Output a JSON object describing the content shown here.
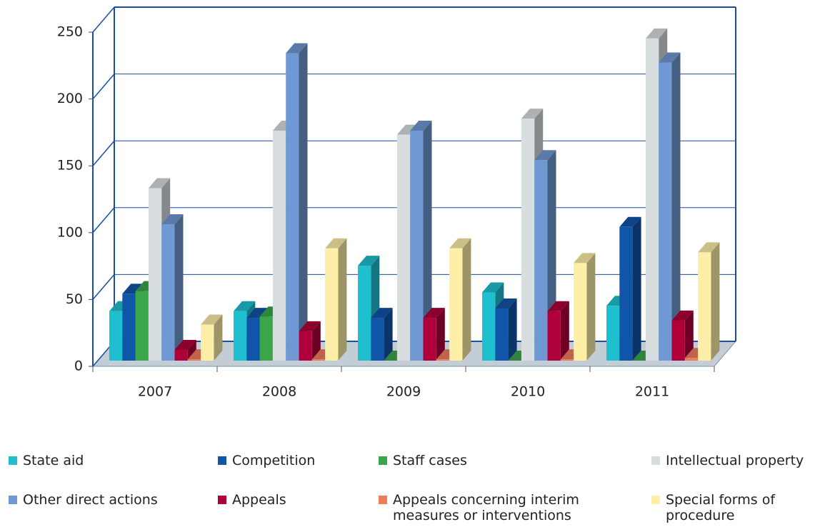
{
  "chart_data": {
    "type": "bar3d",
    "categories": [
      "2007",
      "2008",
      "2009",
      "2010",
      "2011"
    ],
    "series": [
      {
        "name": "State aid",
        "color": "#1fbfd0",
        "values": [
          37,
          37,
          71,
          51,
          41
        ]
      },
      {
        "name": "Competition",
        "color": "#1155a8",
        "values": [
          50,
          32,
          32,
          39,
          100
        ]
      },
      {
        "name": "Staff cases",
        "color": "#3aa64a",
        "values": [
          52,
          33,
          0,
          0,
          0
        ]
      },
      {
        "name": "Intellectual property",
        "color": "#d8dde0",
        "values": [
          129,
          172,
          169,
          181,
          241
        ]
      },
      {
        "name": "Other direct actions",
        "color": "#7099d3",
        "values": [
          102,
          230,
          172,
          150,
          223
        ]
      },
      {
        "name": "Appeals",
        "color": "#b0003a",
        "values": [
          8,
          22,
          32,
          37,
          30
        ]
      },
      {
        "name": "Appeals concerning interim measures or interventions",
        "color": "#ef7d5c",
        "values": [
          1,
          1,
          1,
          1,
          2
        ]
      },
      {
        "name": "Special forms of procedure",
        "color": "#fdefa8",
        "values": [
          27,
          84,
          84,
          73,
          81
        ]
      }
    ],
    "ylim": [
      0,
      250
    ],
    "yticks": [
      0,
      50,
      100,
      150,
      200,
      250
    ],
    "grid": true
  }
}
